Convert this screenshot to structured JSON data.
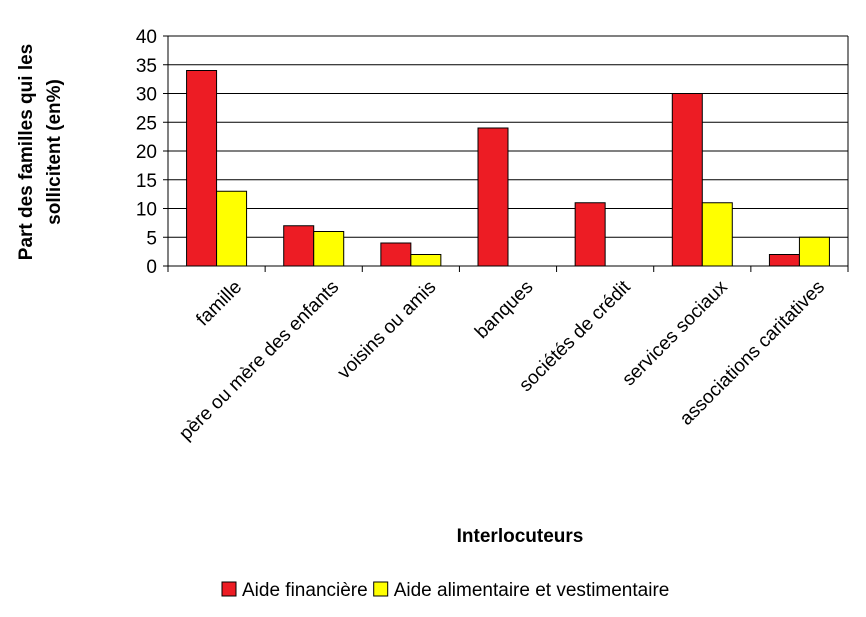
{
  "chart_data": {
    "type": "bar",
    "categories": [
      "famille",
      "père ou mère des enfants",
      "voisins ou amis",
      "banques",
      "sociétés de crédit",
      "services sociaux",
      "associations caritatives"
    ],
    "series": [
      {
        "name": "Aide financière",
        "color": "#ed1c24",
        "values": [
          34,
          7,
          4,
          24,
          11,
          30,
          2
        ]
      },
      {
        "name": "Aide alimentaire et vestimentaire",
        "color": "#ffff00",
        "values": [
          13,
          6,
          2,
          0,
          0,
          11,
          5
        ]
      }
    ],
    "ylim": [
      0,
      40
    ],
    "yticks": [
      0,
      5,
      10,
      15,
      20,
      25,
      30,
      35,
      40
    ],
    "ylabel_lines": [
      "Part des familles qui les",
      "sollicitent (en%)"
    ],
    "xlabel": "Interlocuteurs",
    "grid": true,
    "legend_position": "bottom"
  }
}
